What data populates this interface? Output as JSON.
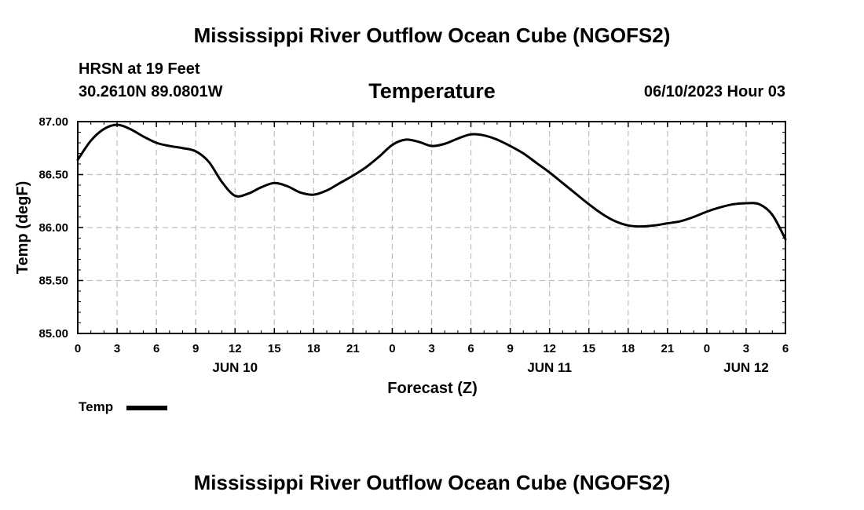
{
  "header": {
    "title": "Mississippi River Outflow Ocean Cube (NGOFS2)",
    "station": "HRSN at 19 Feet",
    "coordinates": "30.2610N  89.0801W",
    "parameter": "Temperature",
    "datetime": "06/10/2023 Hour 03"
  },
  "footer": {
    "title": "Mississippi River Outflow Ocean Cube (NGOFS2)"
  },
  "legend": {
    "label": "Temp"
  },
  "chart_data": {
    "type": "line",
    "title": "Temperature",
    "xlabel": "Forecast (Z)",
    "ylabel": "Temp (degF)",
    "ylim": [
      85.0,
      87.0
    ],
    "xlim": [
      0,
      54
    ],
    "x_unit": "hours since 06/10/2023 00Z",
    "yticks": [
      "85.00",
      "85.50",
      "86.00",
      "86.50",
      "87.00"
    ],
    "ytick_values": [
      85.0,
      85.5,
      86.0,
      86.5,
      87.0
    ],
    "xticks": [
      "0",
      "3",
      "6",
      "9",
      "12",
      "15",
      "18",
      "21",
      "0",
      "3",
      "6",
      "9",
      "12",
      "15",
      "18",
      "21",
      "0",
      "3",
      "6"
    ],
    "day_labels": [
      {
        "label": "JUN 10",
        "hour": 12
      },
      {
        "label": "JUN 11",
        "hour": 36
      },
      {
        "label": "JUN 12",
        "hour": 51
      }
    ],
    "grid": true,
    "series": [
      {
        "name": "Temp",
        "color": "#000000",
        "x": [
          0,
          1,
          2,
          3,
          4,
          5,
          6,
          7,
          8,
          9,
          10,
          11,
          12,
          13,
          14,
          15,
          16,
          17,
          18,
          19,
          20,
          21,
          22,
          23,
          24,
          25,
          26,
          27,
          28,
          29,
          30,
          31,
          32,
          33,
          34,
          35,
          36,
          37,
          38,
          39,
          40,
          41,
          42,
          43,
          44,
          45,
          46,
          47,
          48,
          49,
          50,
          51,
          52,
          53,
          54
        ],
        "values": [
          86.64,
          86.82,
          86.93,
          86.97,
          86.93,
          86.86,
          86.8,
          86.77,
          86.75,
          86.72,
          86.62,
          86.43,
          86.3,
          86.32,
          86.38,
          86.42,
          86.39,
          86.33,
          86.31,
          86.35,
          86.42,
          86.49,
          86.57,
          86.67,
          86.78,
          86.83,
          86.81,
          86.77,
          86.79,
          86.84,
          86.88,
          86.87,
          86.83,
          86.77,
          86.7,
          86.61,
          86.52,
          86.42,
          86.32,
          86.22,
          86.13,
          86.06,
          86.02,
          86.01,
          86.02,
          86.04,
          86.06,
          86.1,
          86.15,
          86.19,
          86.22,
          86.23,
          86.22,
          86.12,
          85.89
        ]
      }
    ]
  }
}
